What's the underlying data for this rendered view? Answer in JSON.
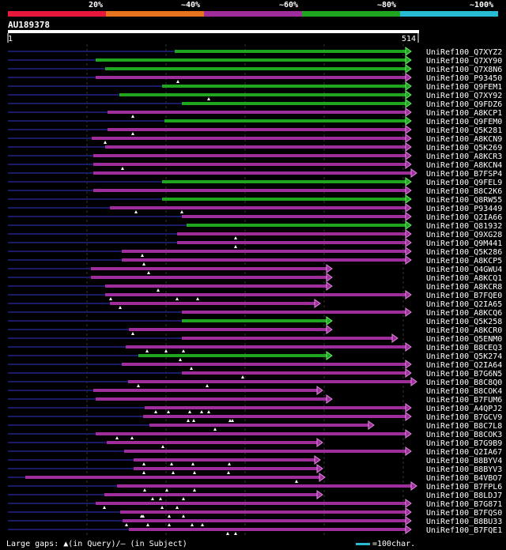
{
  "legend": {
    "labels": [
      "20%",
      "~40%",
      "~60%",
      "~80%",
      "~100%"
    ],
    "colors": [
      "#e8173c",
      "#e8731f",
      "#a02d9c",
      "#1fa51f",
      "#28bcd4"
    ]
  },
  "query": {
    "id": "AU189378",
    "start": "1",
    "end": "514"
  },
  "hits": [
    {
      "name": "UniRef100_Q7XYZ2",
      "s": 221,
      "e": 520,
      "c": "green",
      "d": "far",
      "m": []
    },
    {
      "name": "UniRef100_Q7XY90",
      "s": 121,
      "e": 520,
      "c": "green",
      "d": "gap",
      "m": []
    },
    {
      "name": "UniRef100_Q7X8N6",
      "s": 133,
      "e": 520,
      "c": "green",
      "d": "near",
      "m": []
    },
    {
      "name": "UniRef100_P93450",
      "s": 121,
      "e": 520,
      "c": "purple",
      "d": "gap",
      "m": [
        225
      ]
    },
    {
      "name": "UniRef100_Q9FEM1",
      "s": 205,
      "e": 520,
      "c": "green",
      "d": "far",
      "m": []
    },
    {
      "name": "UniRef100_Q7XY92",
      "s": 151,
      "e": 520,
      "c": "green",
      "d": "gap",
      "m": [
        264
      ]
    },
    {
      "name": "UniRef100_Q9FDZ6",
      "s": 230,
      "e": 520,
      "c": "green",
      "d": "far",
      "m": []
    },
    {
      "name": "UniRef100_A8KCP1",
      "s": 136,
      "e": 520,
      "c": "purple",
      "d": "near",
      "m": [
        168
      ]
    },
    {
      "name": "UniRef100_Q9FEM0",
      "s": 208,
      "e": 520,
      "c": "green",
      "d": "far",
      "m": []
    },
    {
      "name": "UniRef100_Q5K281",
      "s": 136,
      "e": 520,
      "c": "purple",
      "d": "gap",
      "m": [
        168
      ]
    },
    {
      "name": "UniRef100_A8KCN9",
      "s": 116,
      "e": 520,
      "c": "purple",
      "d": "gap",
      "m": [
        133
      ]
    },
    {
      "name": "UniRef100_Q5K269",
      "s": 133,
      "e": 520,
      "c": "purple",
      "d": "gap",
      "m": []
    },
    {
      "name": "UniRef100_A8KCR3",
      "s": 118,
      "e": 520,
      "c": "purple",
      "d": "gap",
      "m": []
    },
    {
      "name": "UniRef100_A8KCN4",
      "s": 118,
      "e": 520,
      "c": "purple",
      "d": "gap",
      "m": [
        155
      ]
    },
    {
      "name": "UniRef100_B7FSP4",
      "s": 118,
      "e": 527,
      "c": "purple",
      "d": "gap",
      "m": []
    },
    {
      "name": "UniRef100_Q9FEL9",
      "s": 205,
      "e": 520,
      "c": "green",
      "d": "far",
      "m": []
    },
    {
      "name": "UniRef100_B8C2K6",
      "s": 118,
      "e": 520,
      "c": "purple",
      "d": "gap",
      "m": []
    },
    {
      "name": "UniRef100_Q8RW55",
      "s": 205,
      "e": 520,
      "c": "green",
      "d": "far",
      "m": []
    },
    {
      "name": "UniRef100_P93449",
      "s": 139,
      "e": 520,
      "c": "purple",
      "d": "gap",
      "m": [
        172,
        230
      ]
    },
    {
      "name": "UniRef100_Q2IA66",
      "s": 230,
      "e": 520,
      "c": "purple",
      "d": "far",
      "m": []
    },
    {
      "name": "UniRef100_Q81932",
      "s": 236,
      "e": 520,
      "c": "green",
      "d": "far",
      "m": []
    },
    {
      "name": "UniRef100_Q9XG28",
      "s": 224,
      "e": 520,
      "c": "purple",
      "d": "far",
      "m": [
        298
      ]
    },
    {
      "name": "UniRef100_Q9M441",
      "s": 224,
      "e": 520,
      "c": "purple",
      "d": "far",
      "m": [
        298
      ]
    },
    {
      "name": "UniRef100_Q5K286",
      "s": 154,
      "e": 520,
      "c": "purple",
      "d": "gap",
      "m": [
        180
      ]
    },
    {
      "name": "UniRef100_A8KCP5",
      "s": 154,
      "e": 520,
      "c": "purple",
      "d": "gap",
      "m": [
        182
      ]
    },
    {
      "name": "UniRef100_Q4GWU4",
      "s": 115,
      "e": 420,
      "c": "purple",
      "d": "gap",
      "m": [
        188
      ]
    },
    {
      "name": "UniRef100_A8KCQ1",
      "s": 115,
      "e": 420,
      "c": "purple",
      "d": "gap",
      "m": []
    },
    {
      "name": "UniRef100_A8KCR8",
      "s": 133,
      "e": 420,
      "c": "purple",
      "d": "near",
      "m": [
        200
      ]
    },
    {
      "name": "UniRef100_B7FQE0",
      "s": 133,
      "e": 520,
      "c": "purple",
      "d": "gap",
      "m": [
        140,
        224,
        250
      ]
    },
    {
      "name": "UniRef100_Q2IA65",
      "s": 139,
      "e": 405,
      "c": "purple",
      "d": "gap",
      "m": [
        152
      ]
    },
    {
      "name": "UniRef100_A8KCQ6",
      "s": 230,
      "e": 520,
      "c": "purple",
      "d": "far",
      "m": []
    },
    {
      "name": "UniRef100_Q5K258",
      "s": 230,
      "e": 420,
      "c": "green",
      "d": "far",
      "m": []
    },
    {
      "name": "UniRef100_A8KCR0",
      "s": 163,
      "e": 420,
      "c": "purple",
      "d": "gap",
      "m": [
        168
      ]
    },
    {
      "name": "UniRef100_Q5ENM0",
      "s": 230,
      "e": 503,
      "c": "purple",
      "d": "far",
      "m": []
    },
    {
      "name": "UniRef100_B8CEQ3",
      "s": 159,
      "e": 520,
      "c": "purple",
      "d": "gap",
      "m": [
        186,
        210,
        232
      ]
    },
    {
      "name": "UniRef100_Q5K274",
      "s": 175,
      "e": 420,
      "c": "green",
      "d": "gap",
      "m": [
        228
      ]
    },
    {
      "name": "UniRef100_Q2IA64",
      "s": 154,
      "e": 520,
      "c": "purple",
      "d": "gap",
      "m": [
        242
      ]
    },
    {
      "name": "UniRef100_B7G6N5",
      "s": 230,
      "e": 520,
      "c": "purple",
      "d": "far",
      "m": [
        307
      ]
    },
    {
      "name": "UniRef100_B8C8Q0",
      "s": 162,
      "e": 527,
      "c": "purple",
      "d": "gap",
      "m": [
        175,
        262
      ]
    },
    {
      "name": "UniRef100_B8COK4",
      "s": 118,
      "e": 408,
      "c": "purple",
      "d": "gap",
      "m": []
    },
    {
      "name": "UniRef100_B7FUM6",
      "s": 121,
      "e": 420,
      "c": "purple",
      "d": "gap",
      "m": []
    },
    {
      "name": "UniRef100_A4QPJ2",
      "s": 183,
      "e": 520,
      "c": "purple",
      "d": "gap",
      "m": [
        197,
        213,
        240,
        255,
        264
      ]
    },
    {
      "name": "UniRef100_B7GCV9",
      "s": 181,
      "e": 520,
      "c": "purple",
      "d": "gap",
      "m": [
        238,
        245,
        291,
        294
      ]
    },
    {
      "name": "UniRef100_B8C7L8",
      "s": 189,
      "e": 473,
      "c": "purple",
      "d": "gap",
      "m": [
        272
      ]
    },
    {
      "name": "UniRef100_B8COK3",
      "s": 121,
      "e": 520,
      "c": "purple",
      "d": "gap",
      "m": [
        148,
        167
      ]
    },
    {
      "name": "UniRef100_B7G9B9",
      "s": 135,
      "e": 408,
      "c": "purple",
      "d": "gap",
      "m": [
        206
      ]
    },
    {
      "name": "UniRef100_Q2IA67",
      "s": 157,
      "e": 520,
      "c": "purple",
      "d": "gap",
      "m": []
    },
    {
      "name": "UniRef100_B8BYV4",
      "s": 169,
      "e": 405,
      "c": "purple",
      "d": "gap",
      "m": [
        182,
        217,
        244,
        290
      ]
    },
    {
      "name": "UniRef100_B8BYV3",
      "s": 169,
      "e": 408,
      "c": "purple",
      "d": "gap",
      "m": [
        182,
        219,
        246,
        289
      ]
    },
    {
      "name": "UniRef100_B4VBO7",
      "s": 32,
      "e": 411,
      "c": "purple",
      "d": "gap",
      "m": [
        375
      ]
    },
    {
      "name": "UniRef100_B7FPL6",
      "s": 148,
      "e": 527,
      "c": "purple",
      "d": "gap",
      "m": [
        183,
        211,
        246
      ]
    },
    {
      "name": "UniRef100_B8LDJ7",
      "s": 132,
      "e": 408,
      "c": "purple",
      "d": "gap",
      "m": [
        193,
        203,
        232
      ]
    },
    {
      "name": "UniRef100_B7G871",
      "s": 121,
      "e": 520,
      "c": "purple",
      "d": "gap",
      "m": [
        132,
        205,
        224
      ]
    },
    {
      "name": "UniRef100_B7FQS0",
      "s": 152,
      "e": 520,
      "c": "purple",
      "d": "gap",
      "m": [
        179,
        181,
        214,
        232
      ]
    },
    {
      "name": "UniRef100_B8BU33",
      "s": 155,
      "e": 520,
      "c": "purple",
      "d": "gap",
      "m": [
        160,
        187,
        214,
        243,
        256
      ]
    },
    {
      "name": "UniRef100_B7FQE1",
      "s": 163,
      "e": 520,
      "c": "purple",
      "d": "gap",
      "m": [
        288,
        298
      ]
    }
  ],
  "footer": {
    "left": "Large gaps: ▲(in Query)/— (in Subject)",
    "right": "=100char."
  }
}
